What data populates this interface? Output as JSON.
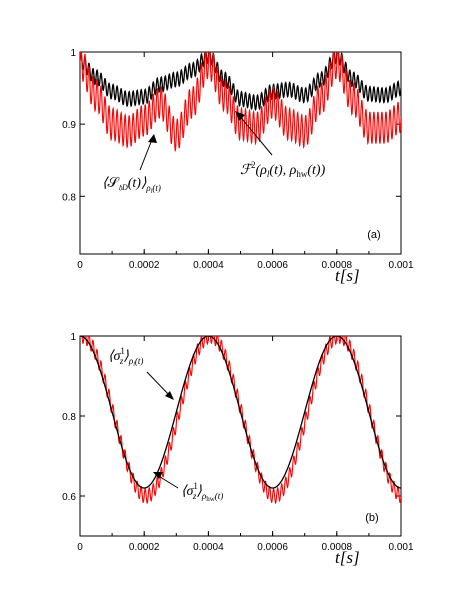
{
  "chart_data": [
    {
      "type": "line",
      "panel_label": "(a)",
      "xlabel": "t[s]",
      "xlim": [
        0,
        0.001
      ],
      "ylim": [
        0.72,
        1.0
      ],
      "x_ticks": [
        {
          "value": 0,
          "label": "0"
        },
        {
          "value": 0.0002,
          "label": "0.0002"
        },
        {
          "value": 0.0004,
          "label": "0.0004"
        },
        {
          "value": 0.0006,
          "label": "0.0006"
        },
        {
          "value": 0.0008,
          "label": "0.0008"
        },
        {
          "value": 0.001,
          "label": "0.001"
        }
      ],
      "y_ticks": [
        {
          "value": 0.8,
          "label": "0.8"
        },
        {
          "value": 0.9,
          "label": "0.9"
        },
        {
          "value": 1.0,
          "label": "1"
        }
      ],
      "grid": false,
      "series": [
        {
          "color": "#000000",
          "x": [
            0,
            5e-05,
            0.0001,
            0.00015,
            0.0002,
            0.00025,
            0.0003,
            0.00035,
            0.0004,
            0.00045,
            0.0005,
            0.00055,
            0.0006,
            0.00065,
            0.0007,
            0.00075,
            0.0008,
            0.00085,
            0.0009,
            0.00095,
            0.001
          ],
          "y": [
            0.988,
            0.965,
            0.945,
            0.935,
            0.938,
            0.955,
            0.962,
            0.975,
            0.995,
            0.962,
            0.935,
            0.93,
            0.945,
            0.948,
            0.94,
            0.962,
            0.995,
            0.962,
            0.942,
            0.94,
            0.95
          ],
          "ripple_amplitude": 0.01,
          "ripple_period": 1.25e-05
        },
        {
          "color": "#ff0000",
          "x": [
            0,
            5e-05,
            0.0001,
            0.00015,
            0.0002,
            0.00025,
            0.0003,
            0.00035,
            0.0004,
            0.00045,
            0.0005,
            0.00055,
            0.0006,
            0.00065,
            0.0007,
            0.00075,
            0.0008,
            0.00085,
            0.0009,
            0.00095,
            0.001
          ],
          "y": [
            0.985,
            0.94,
            0.9,
            0.89,
            0.905,
            0.93,
            0.885,
            0.93,
            0.985,
            0.94,
            0.9,
            0.895,
            0.93,
            0.9,
            0.89,
            0.935,
            0.985,
            0.935,
            0.895,
            0.895,
            0.91
          ],
          "ripple_amplitude": 0.022,
          "ripple_period": 1.25e-05
        }
      ],
      "annotations": [
        {
          "target_series": 1,
          "x": 0.00018,
          "y": 0.895
        },
        {
          "target_series": 0,
          "x": 0.00042,
          "y": 0.935
        }
      ]
    },
    {
      "type": "line",
      "panel_label": "(b)",
      "xlabel": "t[s]",
      "xlim": [
        0,
        0.001
      ],
      "ylim": [
        0.5,
        1.0
      ],
      "x_ticks": [
        {
          "value": 0,
          "label": "0"
        },
        {
          "value": 0.0002,
          "label": "0.0002"
        },
        {
          "value": 0.0004,
          "label": "0.0004"
        },
        {
          "value": 0.0006,
          "label": "0.0006"
        },
        {
          "value": 0.0008,
          "label": "0.0008"
        },
        {
          "value": 0.001,
          "label": "0.001"
        }
      ],
      "y_ticks": [
        {
          "value": 0.6,
          "label": "0.6"
        },
        {
          "value": 0.8,
          "label": "0.8"
        },
        {
          "value": 1.0,
          "label": "1"
        }
      ],
      "grid": false,
      "series": [
        {
          "color": "#ff0000",
          "amplitude": 0.2,
          "mean": 0.8,
          "period": 0.0004,
          "ripple_amplitude": 0.018,
          "ripple_period": 1.25e-05,
          "phase_lag": 6e-06
        },
        {
          "color": "#000000",
          "amplitude": 0.19,
          "mean": 0.81,
          "period": 0.0004
        }
      ],
      "annotations": [
        {
          "target_series": 1,
          "x": 0.0003,
          "y": 0.87
        },
        {
          "target_series": 0,
          "x": 0.00018,
          "y": 0.615
        }
      ]
    }
  ]
}
